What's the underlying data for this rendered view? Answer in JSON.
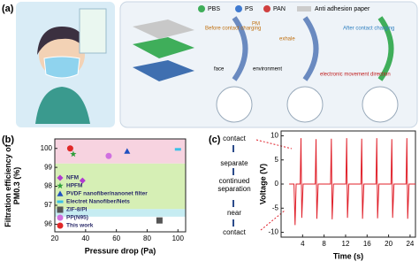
{
  "panel_a": {
    "label": "(a)",
    "legend": [
      "PBS",
      "PS",
      "PAN",
      "Anti adhesion paper"
    ],
    "labels": {
      "before": "Before contact charging",
      "exhale": "exhale",
      "after": "After contact charging",
      "face": "face",
      "environment": "environment",
      "pm": "PM",
      "electron": "electronic movement direction"
    }
  },
  "chart_data": [
    {
      "type": "scatter",
      "panel_label": "(b)",
      "x_label": "Pressure drop (Pa)",
      "y_label": "Filtration efficiency of PM0.3 (%)",
      "xlim": [
        20,
        105
      ],
      "xticks": [
        20,
        40,
        60,
        80,
        100
      ],
      "ylim": [
        95.6,
        100.5
      ],
      "yticks": [
        96,
        97,
        98,
        99,
        100
      ],
      "bands": [
        {
          "from": 99.2,
          "to": 100.5,
          "color": "#f7d3e0"
        },
        {
          "from": 96.8,
          "to": 99.2,
          "color": "#d6efb5"
        },
        {
          "from": 96.4,
          "to": 96.8,
          "color": "#c6ecf2"
        }
      ],
      "series": [
        {
          "name": "NFM",
          "color": "#b03ad0",
          "marker": "diamond",
          "x": [
            38
          ],
          "values": [
            98.3
          ]
        },
        {
          "name": "HPFM",
          "color": "#2e9e3a",
          "marker": "star",
          "x": [
            32
          ],
          "values": [
            99.7
          ]
        },
        {
          "name": "PVDF nanofiber/nanonet filter",
          "color": "#2050c0",
          "marker": "triangle",
          "x": [
            67
          ],
          "values": [
            99.85
          ]
        },
        {
          "name": "Electret Nanofiber/Nets",
          "color": "#3cc0e6",
          "marker": "dash",
          "x": [
            100
          ],
          "values": [
            99.95
          ]
        },
        {
          "name": "ZIF-8/PI",
          "color": "#555555",
          "marker": "square",
          "x": [
            88
          ],
          "values": [
            96.2
          ]
        },
        {
          "name": "PP(N95)",
          "color": "#d070e0",
          "marker": "circle",
          "x": [
            55
          ],
          "values": [
            99.6
          ]
        },
        {
          "name": "This work",
          "color": "#e02828",
          "marker": "circle",
          "x": [
            30
          ],
          "values": [
            100
          ]
        }
      ]
    },
    {
      "type": "line",
      "panel_label": "(c)",
      "x_label": "Time (s)",
      "y_label": "Voltage (V)",
      "color": "#e0202a",
      "xlim": [
        0,
        25
      ],
      "xticks": [
        4,
        8,
        12,
        16,
        20,
        24
      ],
      "ylim": [
        -11,
        11
      ],
      "yticks": [
        -10,
        -5,
        0,
        5,
        10
      ],
      "steps": [
        "contact",
        "separate",
        "continued separation",
        "near",
        "contact"
      ],
      "x": [
        1.5,
        2.4,
        2.6,
        2.8,
        3.55,
        3.7,
        3.85,
        4.1,
        6.35,
        6.5,
        6.65,
        6.9,
        9.2,
        9.35,
        9.5,
        9.75,
        12.05,
        12.2,
        12.35,
        12.6,
        14.85,
        15.0,
        15.15,
        15.4,
        17.65,
        17.8,
        17.95,
        18.2,
        20.45,
        20.6,
        20.75,
        21.0,
        23.25,
        23.4,
        23.55,
        23.8,
        25
      ],
      "values": [
        0,
        0,
        -8.5,
        0,
        0,
        9.5,
        -7,
        0,
        0,
        9.3,
        -7.2,
        0,
        0,
        9.4,
        -7.3,
        0,
        0,
        9.5,
        -7,
        0,
        0,
        9.4,
        -7.2,
        0,
        0,
        9.5,
        -7.1,
        0,
        0,
        9.3,
        -7,
        0,
        0,
        9.5,
        -7.2,
        0,
        0
      ]
    }
  ]
}
